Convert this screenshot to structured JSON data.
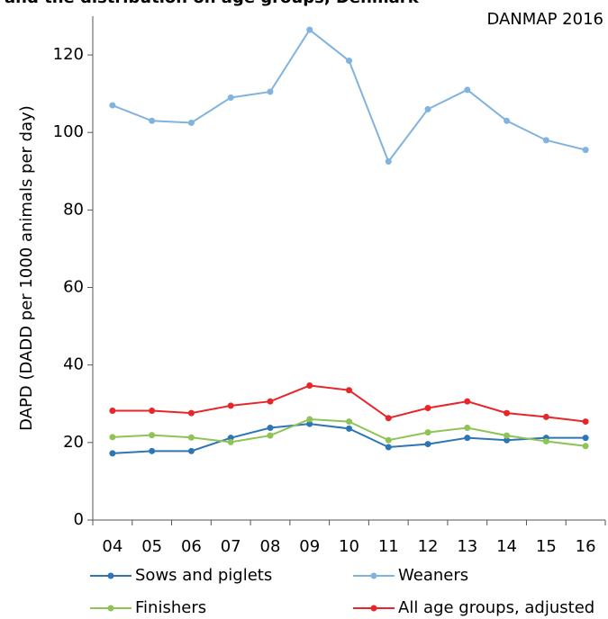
{
  "chart_data": {
    "type": "line",
    "title": "and the distribution on age groups, Denmark",
    "annotation": "DANMAP 2016",
    "y_label": "DAPD (DADD per 1000 animals per day)",
    "categories": [
      "04",
      "05",
      "06",
      "07",
      "08",
      "09",
      "10",
      "11",
      "12",
      "13",
      "14",
      "15",
      "16"
    ],
    "series": [
      {
        "name": "Sows and piglets",
        "color": "#2e75b6",
        "values": [
          17.2,
          17.8,
          17.8,
          21.2,
          23.8,
          24.8,
          23.6,
          18.8,
          19.6,
          21.2,
          20.6,
          21.2,
          21.2
        ]
      },
      {
        "name": "Weaners",
        "color": "#80b3df",
        "values": [
          107,
          103,
          102.5,
          109,
          110.5,
          126.5,
          118.5,
          92.5,
          106,
          111,
          103,
          98,
          95.5
        ]
      },
      {
        "name": "Finishers",
        "color": "#8dc455",
        "values": [
          21.4,
          21.9,
          21.3,
          20.1,
          21.8,
          26,
          25.4,
          20.6,
          22.6,
          23.8,
          21.8,
          20.3,
          19.1
        ]
      },
      {
        "name": "All age groups, adjusted",
        "color": "#e8262a",
        "values": [
          28.2,
          28.2,
          27.6,
          29.5,
          30.6,
          34.7,
          33.5,
          26.3,
          28.9,
          30.6,
          27.6,
          26.6,
          25.4
        ]
      }
    ],
    "ylim": [
      0,
      130
    ],
    "yticks": [
      0,
      20,
      40,
      60,
      80,
      100,
      120
    ],
    "grid": false
  }
}
